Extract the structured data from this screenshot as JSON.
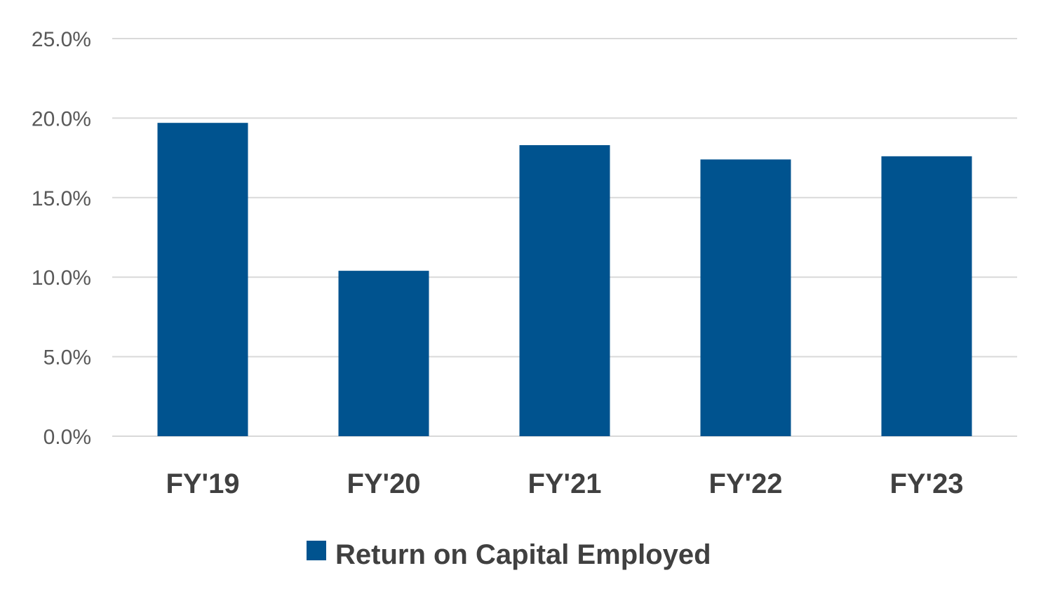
{
  "chart_data": {
    "type": "bar",
    "categories": [
      "FY'19",
      "FY'20",
      "FY'21",
      "FY'22",
      "FY'23"
    ],
    "series": [
      {
        "name": "Return on Capital Employed",
        "values": [
          19.7,
          10.4,
          18.3,
          17.4,
          17.6
        ],
        "color": "#00538f"
      }
    ],
    "y_ticks": [
      "0.0%",
      "5.0%",
      "10.0%",
      "15.0%",
      "20.0%",
      "25.0%"
    ],
    "y_tick_values": [
      0,
      5,
      10,
      15,
      20,
      25
    ],
    "ylim": [
      0,
      25
    ],
    "grid": true,
    "legend_position": "bottom",
    "gridline_color": "#d9d9d9"
  }
}
